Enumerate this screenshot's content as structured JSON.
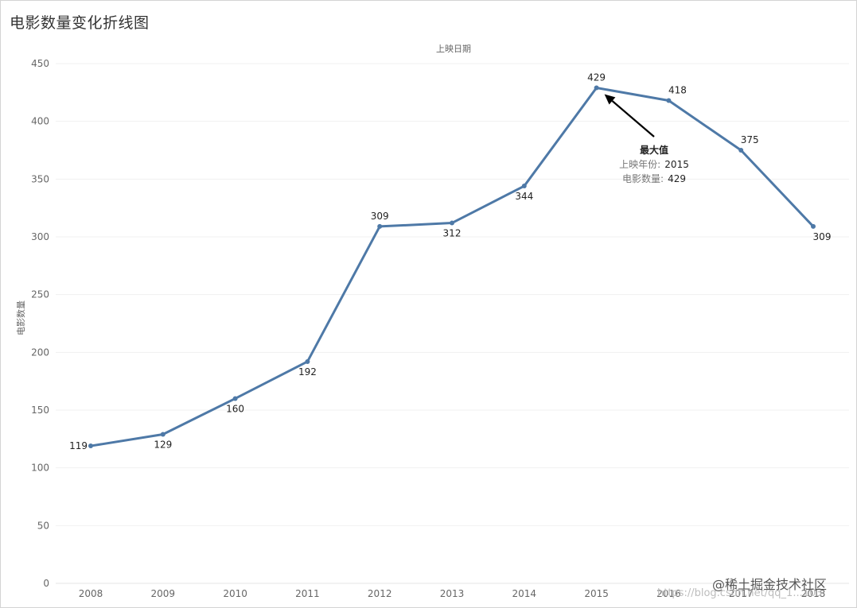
{
  "page_title": "电影数量变化折线图",
  "chart_data": {
    "type": "line",
    "title": "电影数量变化折线图",
    "xlabel": "上映日期",
    "ylabel": "电影数量",
    "categories": [
      "2008",
      "2009",
      "2010",
      "2011",
      "2012",
      "2013",
      "2014",
      "2015",
      "2016",
      "2017",
      "2018"
    ],
    "values": [
      119,
      129,
      160,
      192,
      309,
      312,
      344,
      429,
      418,
      375,
      309
    ],
    "label_positions": [
      "left",
      "below",
      "below",
      "below",
      "above",
      "below",
      "below",
      "above",
      "above",
      "above",
      "below"
    ],
    "ylim": [
      0,
      450
    ],
    "yticks": [
      0,
      50,
      100,
      150,
      200,
      250,
      300,
      350,
      400,
      450
    ],
    "grid": true,
    "line_color": "#4e79a7",
    "annotation": {
      "title": "最大值",
      "year_key": "上映年份:",
      "year_value": "2015",
      "count_key": "电影数量:",
      "count_value": "429",
      "target_index": 7
    }
  },
  "watermark": {
    "url_text": "https://blog.csdn.net/qq_1...103",
    "brand_text": "@稀土掘金技术社区"
  }
}
